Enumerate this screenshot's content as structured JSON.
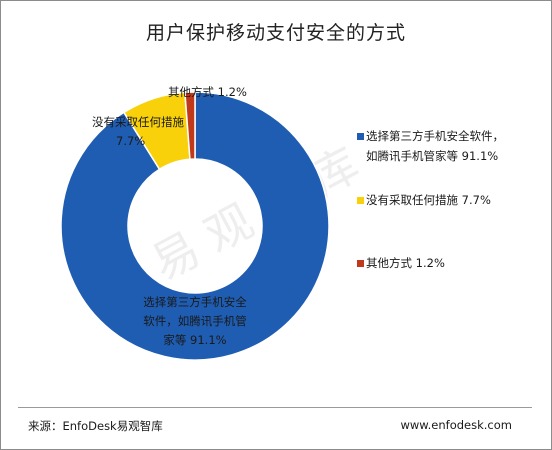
{
  "chart_data": {
    "type": "pie",
    "title": "用户保护移动支付安全的方式",
    "categories": [
      "选择第三方手机安全软件，如腾讯手机管家等",
      "没有采取任何措施",
      "其他方式"
    ],
    "values": [
      91.1,
      7.7,
      1.2
    ],
    "colors": [
      "#1f5db3",
      "#f8d10a",
      "#c0391b"
    ],
    "legend_placement": "right",
    "donut": true
  },
  "annotations": {
    "main_lines": [
      "选择第三方手机安全",
      "软件，如腾讯手机管",
      "家等  91.1%"
    ],
    "none_lines": [
      "没有采取任何措施",
      "7.7%"
    ],
    "other": "其他方式  1.2%"
  },
  "legend": [
    {
      "lines": [
        "选择第三方手机安全软件，",
        "如腾讯手机管家等  91.1%"
      ],
      "color": "#1f5db3"
    },
    {
      "lines": [
        "没有采取任何措施  7.7%"
      ],
      "color": "#f8d10a"
    },
    {
      "lines": [
        "其他方式  1.2%"
      ],
      "color": "#c0391b"
    }
  ],
  "watermark": "易观智库",
  "footer": {
    "source": "来源：EnfoDesk易观智库",
    "url": "www.enfodesk.com"
  }
}
